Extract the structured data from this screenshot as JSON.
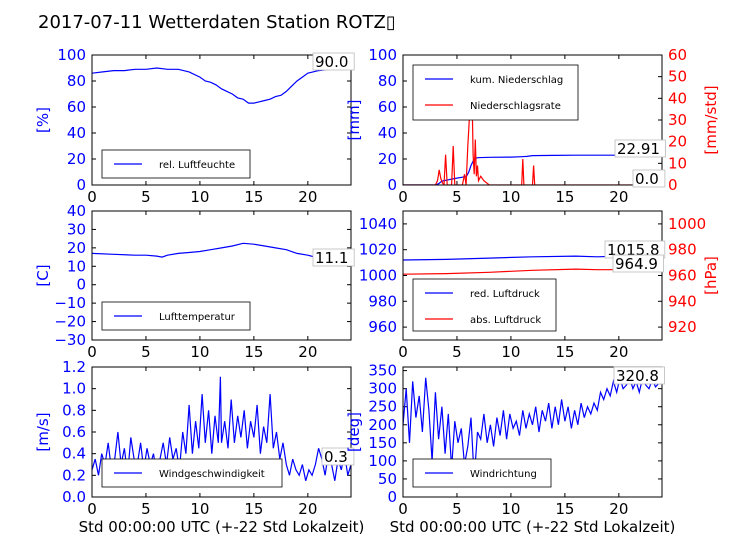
{
  "title": "2017-07-11 Wetterdaten Station ROTZ▯",
  "colors": {
    "primary": "#0000ff",
    "secondary": "#ff0000"
  },
  "chart_data": [
    {
      "id": "humidity",
      "type": "line",
      "title": "",
      "xlabel": "",
      "ylabel": "[%]",
      "xlim": [
        0,
        24
      ],
      "xticks": [
        0,
        5,
        10,
        15,
        20
      ],
      "ylim": [
        0,
        100
      ],
      "yticks": [
        0,
        20,
        40,
        60,
        80,
        100
      ],
      "legend": {
        "placement": "lower-left",
        "entries": [
          "rel. Luftfeuchte"
        ]
      },
      "last_value_labels": [
        "90.0"
      ],
      "series": [
        {
          "name": "rel. Luftfeuchte",
          "axis": "left",
          "color": "#0000ff",
          "x": [
            0,
            1,
            2,
            3,
            4,
            5,
            6,
            7,
            8,
            9,
            10,
            10.5,
            11,
            11.5,
            12,
            12.5,
            13,
            13.5,
            14,
            14.5,
            15,
            15.5,
            16,
            16.5,
            17,
            17.5,
            18,
            18.5,
            19,
            19.5,
            20,
            21,
            22,
            23,
            24
          ],
          "y": [
            86,
            87,
            88,
            88,
            89,
            89,
            90,
            89,
            89,
            87,
            83,
            80,
            79,
            77,
            74,
            72,
            70,
            67,
            66,
            63,
            63,
            64,
            65,
            66,
            68,
            69,
            72,
            76,
            80,
            83,
            86,
            88,
            89,
            89,
            90
          ]
        }
      ]
    },
    {
      "id": "precipitation",
      "type": "line",
      "title": "",
      "xlabel": "",
      "ylabel": "[mm]",
      "ylabel_right": "[mm/std]",
      "xlim": [
        0,
        24
      ],
      "xticks": [
        0,
        5,
        10,
        15,
        20
      ],
      "ylim": [
        0,
        100
      ],
      "yticks": [
        0,
        20,
        40,
        60,
        80,
        100
      ],
      "ylim_right": [
        0,
        60
      ],
      "yticks_right": [
        0,
        10,
        20,
        30,
        40,
        50,
        60
      ],
      "legend": {
        "placement": "upper-left",
        "entries": [
          "kum. Niederschlag",
          "Niederschlagsrate"
        ]
      },
      "last_value_labels": [
        "22.91",
        "0.0"
      ],
      "series": [
        {
          "name": "kum. Niederschlag",
          "axis": "left",
          "color": "#0000ff",
          "x": [
            0,
            3,
            3.3,
            3.6,
            4.2,
            4.8,
            5.5,
            5.9,
            6.1,
            6.3,
            6.6,
            6.9,
            8,
            10,
            11,
            11.5,
            12,
            14,
            16,
            18,
            20,
            24
          ],
          "y": [
            0,
            0,
            1,
            3,
            4,
            5,
            6,
            7,
            10,
            15,
            20,
            21,
            21.3,
            21.5,
            21.8,
            22,
            22.6,
            22.8,
            22.9,
            22.91,
            22.91,
            22.91
          ]
        },
        {
          "name": "Niederschlagsrate",
          "axis": "right",
          "color": "#ff0000",
          "x": [
            0,
            3,
            3.2,
            3.35,
            3.5,
            3.65,
            3.8,
            3.95,
            4.1,
            4.25,
            4.5,
            4.65,
            4.8,
            5.5,
            5.7,
            5.85,
            6.0,
            6.1,
            6.2,
            6.3,
            6.4,
            6.5,
            6.6,
            6.7,
            6.8,
            6.9,
            7.0,
            7.2,
            7.5,
            8.0,
            8.3,
            11.0,
            11.1,
            11.2,
            11.3,
            12.0,
            12.1,
            12.2,
            12.3,
            13,
            24
          ],
          "y": [
            0,
            0,
            2,
            7,
            3,
            1,
            0,
            14,
            0,
            0,
            0,
            18,
            0,
            0,
            5,
            0,
            18,
            26,
            36,
            47,
            40,
            14,
            5,
            21,
            4,
            9,
            2,
            4,
            2,
            0,
            0,
            0,
            12,
            0,
            0,
            0,
            9,
            0,
            0,
            0,
            0
          ]
        }
      ]
    },
    {
      "id": "temperature",
      "type": "line",
      "title": "",
      "xlabel": "",
      "ylabel": "[C]",
      "xlim": [
        0,
        24
      ],
      "xticks": [
        0,
        5,
        10,
        15,
        20
      ],
      "ylim": [
        -30,
        40
      ],
      "yticks": [
        -30,
        -20,
        -10,
        0,
        10,
        20,
        30,
        40
      ],
      "legend": {
        "placement": "lower-left",
        "entries": [
          "Lufttemperatur"
        ]
      },
      "last_value_labels": [
        "11.1"
      ],
      "series": [
        {
          "name": "Lufttemperatur",
          "axis": "left",
          "color": "#0000ff",
          "x": [
            0,
            2,
            4,
            5,
            6,
            6.5,
            7,
            8,
            9,
            10,
            11,
            12,
            13,
            14,
            15,
            16,
            17,
            18,
            19,
            20,
            21,
            22,
            23,
            24
          ],
          "y": [
            17,
            16.5,
            16,
            16,
            15.5,
            15,
            16,
            17,
            17.5,
            18,
            19,
            20,
            21,
            22.5,
            22,
            21,
            20,
            19,
            17,
            16,
            14.5,
            13,
            12,
            11.1
          ]
        }
      ]
    },
    {
      "id": "pressure",
      "type": "line",
      "title": "",
      "xlabel": "",
      "ylabel": "",
      "ylabel_right": "[hPa]",
      "xlim": [
        0,
        24
      ],
      "xticks": [
        0,
        5,
        10,
        15,
        20
      ],
      "ylim": [
        950,
        1050
      ],
      "yticks": [
        960,
        980,
        1000,
        1020,
        1040
      ],
      "ylim_right": [
        910,
        1010
      ],
      "yticks_right": [
        920,
        940,
        960,
        980,
        1000
      ],
      "legend": {
        "placement": "lower-left",
        "entries": [
          "red. Luftdruck",
          "abs. Luftdruck"
        ]
      },
      "last_value_labels": [
        "1015.8",
        "964.9"
      ],
      "series": [
        {
          "name": "red. Luftdruck",
          "axis": "left",
          "color": "#0000ff",
          "x": [
            0,
            4,
            8,
            12,
            16,
            18,
            20,
            24
          ],
          "y": [
            1012,
            1012.5,
            1013.5,
            1014.5,
            1015,
            1014.5,
            1015,
            1015.8
          ]
        },
        {
          "name": "abs. Luftdruck",
          "axis": "right",
          "color": "#ff0000",
          "x": [
            0,
            4,
            8,
            12,
            16,
            18,
            20,
            24
          ],
          "y": [
            961,
            961.5,
            962.5,
            964,
            965,
            964.5,
            964.5,
            964.9
          ]
        }
      ]
    },
    {
      "id": "wind-speed",
      "type": "line",
      "title": "",
      "xlabel": "Std 00:00:00 UTC (+-22 Std Lokalzeit)",
      "ylabel": "[m/s]",
      "xlim": [
        0,
        24
      ],
      "xticks": [
        0,
        5,
        10,
        15,
        20
      ],
      "ylim": [
        0,
        1.2
      ],
      "yticks": [
        0.0,
        0.2,
        0.4,
        0.6,
        0.8,
        1.0,
        1.2
      ],
      "legend": {
        "placement": "lower-left",
        "entries": [
          "Windgeschwindigkeit"
        ]
      },
      "last_value_labels": [
        "0.3"
      ],
      "series": [
        {
          "name": "Windgeschwindigkeit",
          "axis": "left",
          "color": "#0000ff",
          "x": [
            0,
            0.3,
            0.6,
            0.9,
            1.2,
            1.5,
            1.8,
            2.1,
            2.4,
            2.7,
            3.0,
            3.3,
            3.6,
            3.9,
            4.2,
            4.5,
            4.8,
            5.1,
            5.4,
            5.7,
            6.0,
            6.3,
            6.6,
            6.9,
            7.2,
            7.5,
            7.8,
            8.1,
            8.4,
            8.7,
            9.0,
            9.3,
            9.6,
            9.9,
            10.2,
            10.5,
            10.8,
            11.1,
            11.4,
            11.7,
            11.9,
            12.0,
            12.3,
            12.6,
            12.9,
            13.2,
            13.5,
            13.8,
            14.1,
            14.4,
            14.7,
            15.0,
            15.3,
            15.6,
            15.9,
            16.2,
            16.5,
            16.8,
            17.1,
            17.4,
            17.7,
            18.0,
            18.3,
            18.6,
            18.9,
            19.2,
            19.5,
            19.8,
            20.1,
            20.4,
            20.7,
            21.0,
            21.3,
            21.6,
            21.9,
            22.2,
            22.5,
            22.8,
            23.1,
            23.4,
            23.7,
            24.0
          ],
          "y": [
            0.25,
            0.35,
            0.2,
            0.4,
            0.3,
            0.5,
            0.25,
            0.35,
            0.6,
            0.3,
            0.45,
            0.2,
            0.55,
            0.35,
            0.3,
            0.5,
            0.25,
            0.45,
            0.3,
            0.4,
            0.2,
            0.35,
            0.5,
            0.3,
            0.55,
            0.35,
            0.45,
            0.25,
            0.6,
            0.4,
            0.85,
            0.4,
            0.7,
            0.45,
            0.95,
            0.5,
            0.8,
            0.4,
            0.75,
            0.5,
            1.11,
            0.5,
            0.7,
            0.45,
            0.9,
            0.5,
            0.75,
            0.55,
            0.8,
            0.45,
            0.7,
            0.55,
            0.85,
            0.4,
            0.65,
            0.5,
            0.95,
            0.45,
            0.6,
            0.35,
            0.5,
            0.3,
            0.2,
            0.35,
            0.25,
            0.2,
            0.3,
            0.15,
            0.25,
            0.2,
            0.3,
            0.45,
            0.35,
            0.2,
            0.4,
            0.3,
            0.15,
            0.35,
            0.25,
            0.4,
            0.2,
            0.3
          ]
        }
      ]
    },
    {
      "id": "wind-direction",
      "type": "line",
      "title": "",
      "xlabel": "Std 00:00:00 UTC (+-22 Std Lokalzeit)",
      "ylabel": "[deg]",
      "xlim": [
        0,
        24
      ],
      "xticks": [
        0,
        5,
        10,
        15,
        20
      ],
      "ylim": [
        0,
        360
      ],
      "yticks": [
        0,
        50,
        100,
        150,
        200,
        250,
        300,
        350
      ],
      "legend": {
        "placement": "lower-left",
        "entries": [
          "Windrichtung"
        ]
      },
      "last_value_labels": [
        "320.8"
      ],
      "series": [
        {
          "name": "Windrichtung",
          "axis": "left",
          "color": "#0000ff",
          "x": [
            0,
            0.3,
            0.6,
            0.9,
            1.2,
            1.5,
            1.8,
            2.1,
            2.4,
            2.7,
            3.0,
            3.3,
            3.6,
            3.9,
            4.2,
            4.5,
            4.8,
            5.1,
            5.4,
            5.7,
            6.0,
            6.3,
            6.6,
            6.9,
            7.2,
            7.5,
            7.8,
            8.1,
            8.4,
            8.7,
            9.0,
            9.3,
            9.6,
            9.9,
            10.2,
            10.5,
            10.8,
            11.1,
            11.4,
            11.7,
            12.0,
            12.3,
            12.6,
            12.9,
            13.2,
            13.5,
            13.8,
            14.1,
            14.4,
            14.7,
            15.0,
            15.3,
            15.6,
            15.9,
            16.2,
            16.5,
            16.8,
            17.1,
            17.4,
            17.7,
            18.0,
            18.3,
            18.6,
            18.9,
            19.2,
            19.5,
            19.8,
            20.1,
            20.4,
            20.7,
            21.0,
            21.3,
            21.6,
            21.9,
            22.2,
            22.5,
            22.8,
            23.1,
            23.4,
            23.7,
            24.0
          ],
          "y": [
            200,
            300,
            150,
            320,
            220,
            280,
            180,
            330,
            240,
            100,
            290,
            160,
            250,
            120,
            230,
            80,
            210,
            150,
            190,
            90,
            140,
            220,
            50,
            180,
            160,
            230,
            150,
            200,
            140,
            220,
            170,
            240,
            160,
            230,
            190,
            210,
            170,
            240,
            190,
            230,
            200,
            250,
            180,
            240,
            210,
            260,
            190,
            250,
            200,
            270,
            210,
            250,
            190,
            240,
            200,
            260,
            220,
            250,
            230,
            260,
            240,
            290,
            270,
            300,
            280,
            320,
            290,
            330,
            300,
            310,
            330,
            300,
            320,
            290,
            330,
            310,
            300,
            325,
            305,
            315,
            320.8
          ]
        }
      ]
    }
  ]
}
